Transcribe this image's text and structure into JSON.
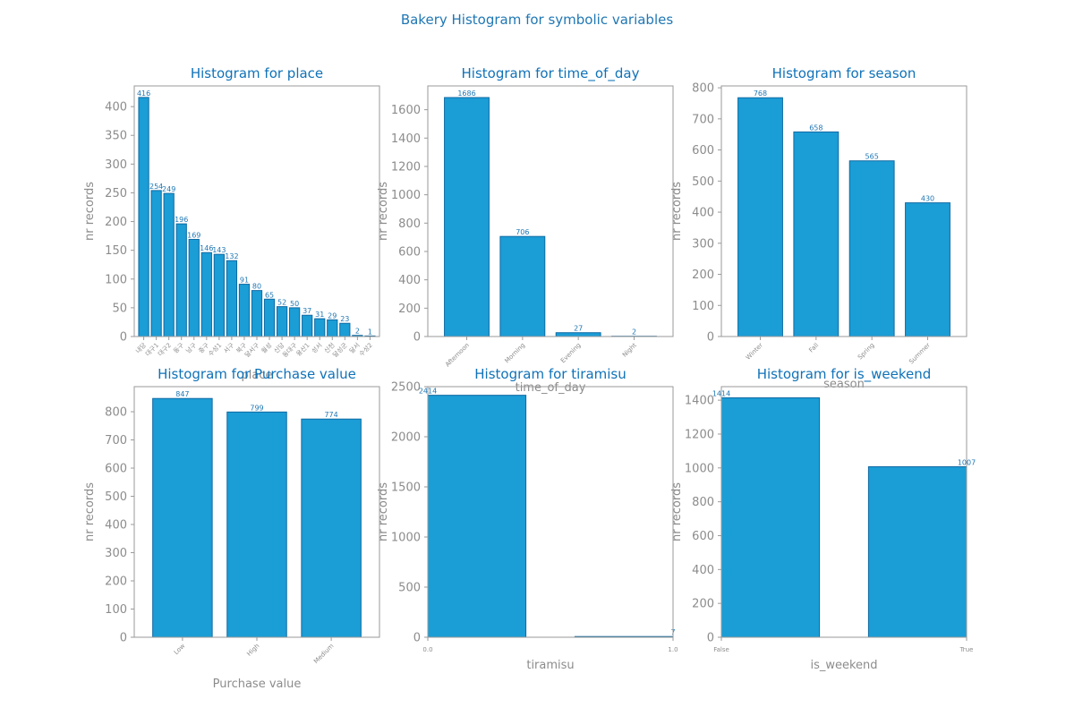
{
  "figure": {
    "title": "Bakery Histogram for symbolic variables"
  },
  "colors": {
    "bar_fill": "#1b9dd6",
    "bar_edge": "#0f6aa3",
    "title": "#0f72b8",
    "axis_text": "#8c8c8c"
  },
  "chart_data": [
    {
      "type": "bar",
      "title": "Histogram for place",
      "xlabel": "place",
      "ylabel": "nr records",
      "ylim": [
        0,
        436
      ],
      "yticks": [
        0,
        50,
        100,
        150,
        200,
        250,
        300,
        350,
        400
      ],
      "categories": [
        "내당",
        "대구1",
        "대구2",
        "동구",
        "남구",
        "중구",
        "수성1",
        "서구",
        "북구",
        "달서구",
        "월성",
        "신당",
        "동대구",
        "용산1",
        "성서",
        "신천",
        "달성군",
        "달서",
        "수성2"
      ],
      "values": [
        416,
        254,
        249,
        196,
        169,
        146,
        143,
        132,
        91,
        80,
        65,
        52,
        50,
        37,
        31,
        29,
        23,
        2,
        1
      ],
      "grid": false
    },
    {
      "type": "bar",
      "title": "Histogram for time_of_day",
      "xlabel": "time_of_day",
      "ylabel": "nr records",
      "ylim": [
        0,
        1768
      ],
      "yticks": [
        0,
        200,
        400,
        600,
        800,
        1000,
        1200,
        1400,
        1600
      ],
      "categories": [
        "Afternoon",
        "Morning",
        "Evening",
        "Night"
      ],
      "values": [
        1686,
        706,
        27,
        2
      ],
      "grid": false
    },
    {
      "type": "bar",
      "title": "Histogram for season",
      "xlabel": "season",
      "ylabel": "nr records",
      "ylim": [
        0,
        806
      ],
      "yticks": [
        0,
        100,
        200,
        300,
        400,
        500,
        600,
        700,
        800
      ],
      "categories": [
        "Winter",
        "Fall",
        "Spring",
        "Summer"
      ],
      "values": [
        768,
        658,
        565,
        430
      ],
      "grid": false
    },
    {
      "type": "bar",
      "title": "Histogram for Purchase value",
      "xlabel": "Purchase value",
      "ylabel": "nr records",
      "ylim": [
        0,
        889
      ],
      "yticks": [
        0,
        100,
        200,
        300,
        400,
        500,
        600,
        700,
        800
      ],
      "categories": [
        "Low",
        "High",
        "Medium"
      ],
      "values": [
        847,
        799,
        774
      ],
      "grid": false
    },
    {
      "type": "bar",
      "title": "Histogram for tiramisu",
      "xlabel": "tiramisu",
      "ylabel": "nr records",
      "ylim": [
        0,
        2500
      ],
      "yticks": [
        0,
        500,
        1000,
        1500,
        2000,
        2500
      ],
      "categories": [
        "0.0",
        "1.0"
      ],
      "values": [
        2414,
        7
      ],
      "grid": false
    },
    {
      "type": "bar",
      "title": "Histogram for is_weekend",
      "xlabel": "is_weekend",
      "ylabel": "nr records",
      "ylim": [
        0,
        1480
      ],
      "yticks": [
        0,
        200,
        400,
        600,
        800,
        1000,
        1200,
        1400
      ],
      "categories": [
        "False",
        "True"
      ],
      "values": [
        1414,
        1007
      ],
      "grid": false
    }
  ]
}
